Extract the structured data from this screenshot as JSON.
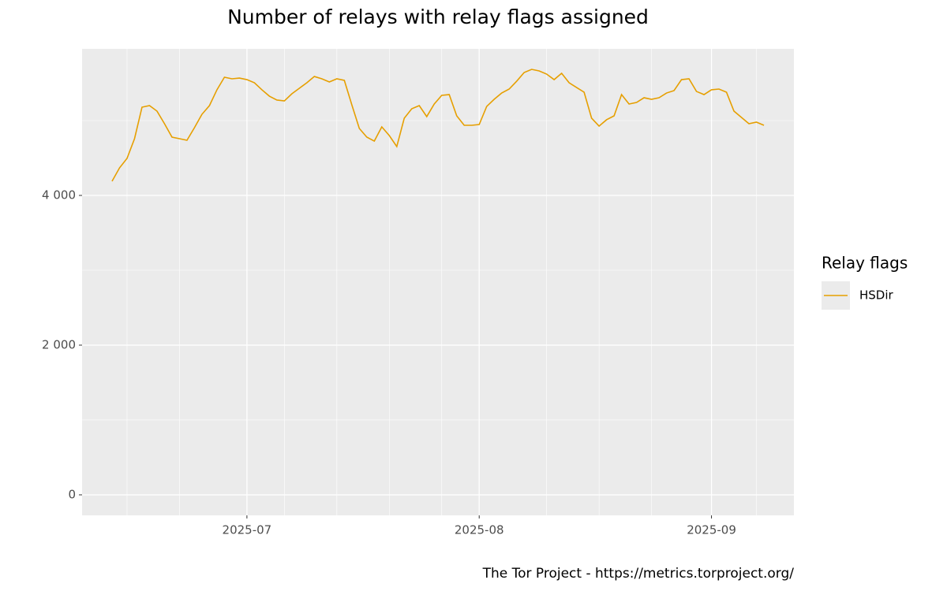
{
  "chart_data": {
    "type": "line",
    "title": "Number of relays with relay flags assigned",
    "caption": "The Tor Project - https://metrics.torproject.org/",
    "legend_title": "Relay flags",
    "legend_position": "right",
    "grid": true,
    "x": [
      "2025-06-13",
      "2025-06-14",
      "2025-06-15",
      "2025-06-16",
      "2025-06-17",
      "2025-06-18",
      "2025-06-19",
      "2025-06-20",
      "2025-06-21",
      "2025-06-22",
      "2025-06-23",
      "2025-06-24",
      "2025-06-25",
      "2025-06-26",
      "2025-06-27",
      "2025-06-28",
      "2025-06-29",
      "2025-06-30",
      "2025-07-01",
      "2025-07-02",
      "2025-07-03",
      "2025-07-04",
      "2025-07-05",
      "2025-07-06",
      "2025-07-07",
      "2025-07-08",
      "2025-07-09",
      "2025-07-10",
      "2025-07-11",
      "2025-07-12",
      "2025-07-13",
      "2025-07-14",
      "2025-07-15",
      "2025-07-16",
      "2025-07-17",
      "2025-07-18",
      "2025-07-19",
      "2025-07-20",
      "2025-07-21",
      "2025-07-22",
      "2025-07-23",
      "2025-07-24",
      "2025-07-25",
      "2025-07-26",
      "2025-07-27",
      "2025-07-28",
      "2025-07-29",
      "2025-07-30",
      "2025-07-31",
      "2025-08-01",
      "2025-08-02",
      "2025-08-03",
      "2025-08-04",
      "2025-08-05",
      "2025-08-06",
      "2025-08-07",
      "2025-08-08",
      "2025-08-09",
      "2025-08-10",
      "2025-08-11",
      "2025-08-12",
      "2025-08-13",
      "2025-08-14",
      "2025-08-15",
      "2025-08-16",
      "2025-08-17",
      "2025-08-18",
      "2025-08-19",
      "2025-08-20",
      "2025-08-21",
      "2025-08-22",
      "2025-08-23",
      "2025-08-24",
      "2025-08-25",
      "2025-08-26",
      "2025-08-27",
      "2025-08-28",
      "2025-08-29",
      "2025-08-30",
      "2025-08-31",
      "2025-09-01",
      "2025-09-02",
      "2025-09-03",
      "2025-09-04",
      "2025-09-05",
      "2025-09-06",
      "2025-09-07",
      "2025-09-08"
    ],
    "series": [
      {
        "name": "HSDir",
        "color": "#e69f00",
        "values": [
          4189,
          4368,
          4495,
          4758,
          5179,
          5200,
          5126,
          4958,
          4779,
          4758,
          4737,
          4905,
          5084,
          5200,
          5411,
          5579,
          5558,
          5568,
          5547,
          5505,
          5411,
          5326,
          5274,
          5263,
          5358,
          5432,
          5505,
          5589,
          5558,
          5516,
          5558,
          5537,
          5211,
          4895,
          4779,
          4726,
          4916,
          4800,
          4653,
          5032,
          5158,
          5200,
          5053,
          5221,
          5337,
          5347,
          5063,
          4937,
          4937,
          4947,
          5189,
          5284,
          5368,
          5421,
          5526,
          5642,
          5684,
          5663,
          5621,
          5547,
          5632,
          5505,
          5442,
          5379,
          5032,
          4926,
          5011,
          5063,
          5347,
          5221,
          5242,
          5305,
          5284,
          5305,
          5368,
          5400,
          5547,
          5558,
          5389,
          5347,
          5411,
          5421,
          5379,
          5126,
          5042,
          4958,
          4979,
          4937
        ]
      }
    ],
    "xlim": [
      "2025-06-09",
      "2025-09-12"
    ],
    "xticks": [
      {
        "value": "2025-07-01",
        "label": "2025-07"
      },
      {
        "value": "2025-08-01",
        "label": "2025-08"
      },
      {
        "value": "2025-09-01",
        "label": "2025-09"
      }
    ],
    "xminor": [
      "2025-06-15",
      "2025-06-22",
      "2025-07-06",
      "2025-07-13",
      "2025-07-20",
      "2025-07-27",
      "2025-08-10",
      "2025-08-17",
      "2025-08-24",
      "2025-09-07"
    ],
    "ylim": [
      -274,
      5958
    ],
    "yticks": [
      0,
      {
        "value": 2000,
        "label": "2 000"
      },
      {
        "value": 4000,
        "label": "4 000"
      }
    ],
    "yminor": [
      1000,
      3000,
      5000
    ]
  }
}
